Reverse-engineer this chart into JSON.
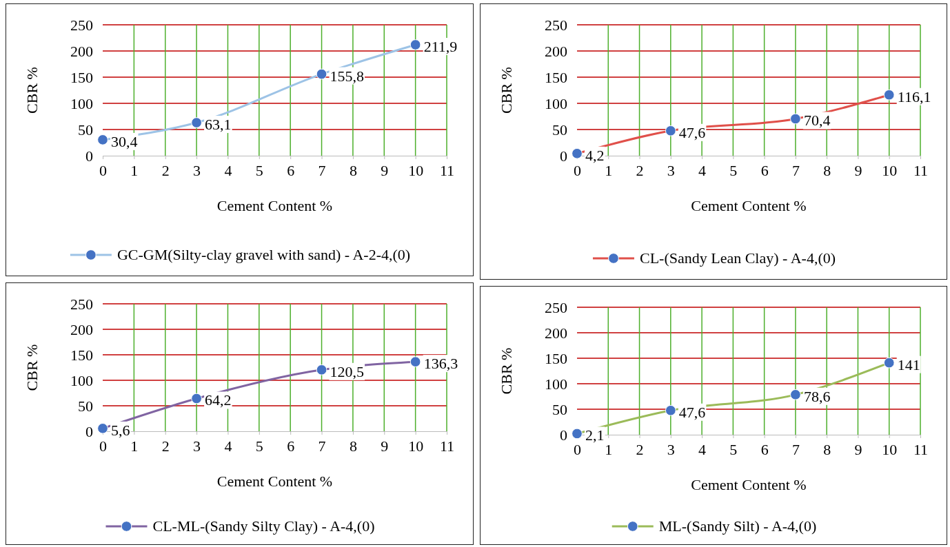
{
  "chart_data": [
    {
      "type": "line",
      "xlabel": "Cement Content %",
      "ylabel": "CBR %",
      "x": [
        0,
        3,
        7,
        10
      ],
      "xlim": [
        0,
        11
      ],
      "xticks": [
        0,
        1,
        2,
        3,
        4,
        5,
        6,
        7,
        8,
        9,
        10,
        11
      ],
      "ylim": [
        0,
        250
      ],
      "yticks": [
        0,
        50,
        100,
        150,
        200,
        250
      ],
      "grid": true,
      "legend": "bottom",
      "marker": "circle",
      "series": [
        {
          "name": "GC-GM(Silty-clay gravel with sand) - A-2-4,(0)",
          "color": "#9dc3e6",
          "colors": [
            "#4472c4",
            "#4472c4",
            "#4472c4",
            "#4472c4"
          ],
          "values": [
            30.4,
            63.1,
            155.8,
            211.9
          ],
          "value_labels": [
            "30,4",
            "63,1",
            "155,8",
            "211,9"
          ]
        }
      ]
    },
    {
      "type": "line",
      "xlabel": "Cement Content %",
      "ylabel": "CBR %",
      "x": [
        0,
        3,
        7,
        10
      ],
      "xlim": [
        0,
        11
      ],
      "xticks": [
        0,
        1,
        2,
        3,
        4,
        5,
        6,
        7,
        8,
        9,
        10,
        11
      ],
      "ylim": [
        0,
        250
      ],
      "yticks": [
        0,
        50,
        100,
        150,
        200,
        250
      ],
      "grid": true,
      "legend": "bottom",
      "marker": "circle",
      "series": [
        {
          "name": "CL-(Sandy Lean Clay) - A-4,(0)",
          "color": "#e0504a",
          "colors": [
            "#4472c4",
            "#4472c4",
            "#4472c4",
            "#4472c4"
          ],
          "values": [
            4.2,
            47.6,
            70.4,
            116.1
          ],
          "value_labels": [
            "4,2",
            "47,6",
            "70,4",
            "116,1"
          ]
        }
      ]
    },
    {
      "type": "line",
      "xlabel": "Cement Content %",
      "ylabel": "CBR %",
      "x": [
        0,
        3,
        7,
        10
      ],
      "xlim": [
        0,
        11
      ],
      "xticks": [
        0,
        1,
        2,
        3,
        4,
        5,
        6,
        7,
        8,
        9,
        10,
        11
      ],
      "ylim": [
        0,
        250
      ],
      "yticks": [
        0,
        50,
        100,
        150,
        200,
        250
      ],
      "grid": true,
      "legend": "bottom",
      "marker": "circle",
      "series": [
        {
          "name": "CL-ML-(Sandy Silty Clay) - A-4,(0)",
          "color": "#8064a2",
          "colors": [
            "#4472c4",
            "#4472c4",
            "#4472c4",
            "#4472c4"
          ],
          "values": [
            5.6,
            64.2,
            120.5,
            136.3
          ],
          "value_labels": [
            "5,6",
            "64,2",
            "120,5",
            "136,3"
          ]
        }
      ]
    },
    {
      "type": "line",
      "xlabel": "Cement Content %",
      "ylabel": "CBR %",
      "x": [
        0,
        3,
        7,
        10
      ],
      "xlim": [
        0,
        11
      ],
      "xticks": [
        0,
        1,
        2,
        3,
        4,
        5,
        6,
        7,
        8,
        9,
        10,
        11
      ],
      "ylim": [
        0,
        250
      ],
      "yticks": [
        0,
        50,
        100,
        150,
        200,
        250
      ],
      "grid": true,
      "legend": "bottom",
      "marker": "circle",
      "series": [
        {
          "name": "ML-(Sandy Silt) - A-4,(0)",
          "color": "#9bbb59",
          "colors": [
            "#4472c4",
            "#4472c4",
            "#4472c4",
            "#4472c4"
          ],
          "values": [
            2.1,
            47.6,
            78.6,
            141
          ],
          "value_labels": [
            "2,1",
            "47,6",
            "78,6",
            "141"
          ]
        }
      ]
    }
  ]
}
